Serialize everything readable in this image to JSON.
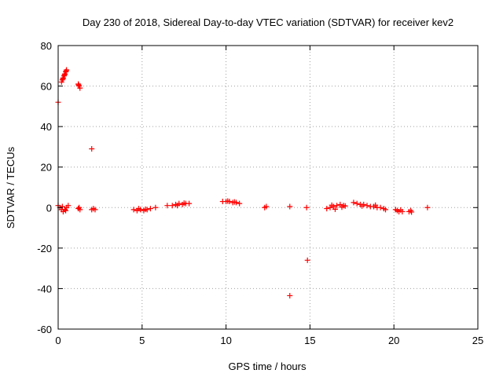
{
  "chart_data": {
    "type": "scatter",
    "title": "Day 230 of 2018, Sidereal Day-to-day VTEC variation (SDTVAR) for receiver kev2",
    "xlabel": "GPS time / hours",
    "ylabel": "SDTVAR / TECUs",
    "xlim": [
      0,
      25
    ],
    "ylim": [
      -60,
      80
    ],
    "xticks": [
      0,
      5,
      10,
      15,
      20,
      25
    ],
    "yticks": [
      -60,
      -40,
      -20,
      0,
      20,
      40,
      60,
      80
    ],
    "grid": true,
    "marker": "+",
    "color": "#ff0000",
    "series": [
      {
        "name": "SDTVAR",
        "points": [
          [
            0.0,
            52
          ],
          [
            0.2,
            62
          ],
          [
            0.25,
            63
          ],
          [
            0.3,
            64
          ],
          [
            0.35,
            65
          ],
          [
            0.4,
            66
          ],
          [
            0.45,
            67
          ],
          [
            0.5,
            68
          ],
          [
            0.28,
            63.5
          ],
          [
            0.38,
            65.5
          ],
          [
            0.48,
            67.5
          ],
          [
            1.2,
            61
          ],
          [
            1.25,
            60
          ],
          [
            1.3,
            59
          ],
          [
            1.22,
            60.5
          ],
          [
            2.0,
            29
          ],
          [
            0.0,
            1
          ],
          [
            0.1,
            0
          ],
          [
            0.2,
            -1
          ],
          [
            0.3,
            -2
          ],
          [
            0.4,
            -1
          ],
          [
            0.5,
            0
          ],
          [
            0.6,
            1
          ],
          [
            0.25,
            0.5
          ],
          [
            0.45,
            -1.5
          ],
          [
            1.2,
            -0.5
          ],
          [
            1.3,
            -1
          ],
          [
            1.25,
            0
          ],
          [
            2.0,
            -1
          ],
          [
            2.1,
            -0.5
          ],
          [
            2.2,
            -1
          ],
          [
            4.5,
            -1
          ],
          [
            4.7,
            -1.5
          ],
          [
            4.9,
            -1
          ],
          [
            5.1,
            -1.5
          ],
          [
            5.3,
            -1
          ],
          [
            5.5,
            -0.5
          ],
          [
            5.8,
            0
          ],
          [
            4.8,
            -0.5
          ],
          [
            5.2,
            -0.8
          ],
          [
            6.5,
            1
          ],
          [
            6.8,
            1
          ],
          [
            7.0,
            1.5
          ],
          [
            7.2,
            2
          ],
          [
            7.4,
            1.5
          ],
          [
            7.6,
            2
          ],
          [
            7.8,
            2
          ],
          [
            7.1,
            1
          ],
          [
            7.5,
            2.2
          ],
          [
            9.8,
            3
          ],
          [
            10.0,
            3
          ],
          [
            10.2,
            3
          ],
          [
            10.4,
            2.5
          ],
          [
            10.6,
            2.5
          ],
          [
            10.8,
            2
          ],
          [
            10.1,
            3.2
          ],
          [
            10.5,
            2.8
          ],
          [
            12.4,
            0.5
          ],
          [
            12.3,
            0
          ],
          [
            13.8,
            0.5
          ],
          [
            13.8,
            -43.5
          ],
          [
            14.8,
            0
          ],
          [
            14.85,
            -26
          ],
          [
            16.0,
            -0.5
          ],
          [
            16.2,
            0
          ],
          [
            16.4,
            0.5
          ],
          [
            16.6,
            1
          ],
          [
            16.8,
            1.5
          ],
          [
            17.0,
            1
          ],
          [
            16.3,
            1.2
          ],
          [
            16.9,
            0.2
          ],
          [
            16.5,
            -0.8
          ],
          [
            17.1,
            0.8
          ],
          [
            17.6,
            2.5
          ],
          [
            17.8,
            2
          ],
          [
            18.0,
            1.5
          ],
          [
            18.2,
            1.5
          ],
          [
            18.4,
            1
          ],
          [
            18.6,
            0.5
          ],
          [
            18.8,
            0.5
          ],
          [
            19.0,
            0
          ],
          [
            19.2,
            0
          ],
          [
            19.4,
            -0.5
          ],
          [
            19.5,
            -1
          ],
          [
            18.1,
            0.8
          ],
          [
            18.9,
            1.2
          ],
          [
            20.1,
            -1
          ],
          [
            20.2,
            -1.5
          ],
          [
            20.3,
            -2
          ],
          [
            20.5,
            -2
          ],
          [
            20.4,
            -1.2
          ],
          [
            20.9,
            -2
          ],
          [
            21.0,
            -1.5
          ],
          [
            21.05,
            -2.2
          ],
          [
            22.0,
            0
          ]
        ]
      }
    ]
  }
}
